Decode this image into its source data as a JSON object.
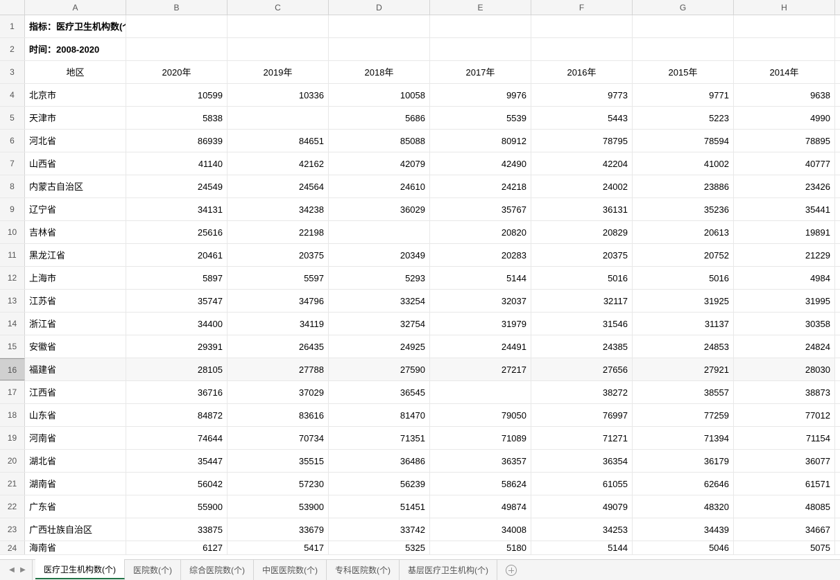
{
  "columns": [
    "A",
    "B",
    "C",
    "D",
    "E",
    "F",
    "G",
    "H"
  ],
  "title_row": {
    "label": "指标：医疗卫生机构数(个)"
  },
  "time_row": {
    "label": "时间：2008-2020"
  },
  "header_row": {
    "region": "地区",
    "years": [
      "2020年",
      "2019年",
      "2018年",
      "2017年",
      "2016年",
      "2015年",
      "2014年"
    ]
  },
  "selected_row_index": 16,
  "data_rows": [
    {
      "row_num": "4",
      "region": "北京市",
      "values": [
        "10599",
        "10336",
        "10058",
        "9976",
        "9773",
        "9771",
        "9638"
      ]
    },
    {
      "row_num": "5",
      "region": "天津市",
      "values": [
        "5838",
        "",
        "5686",
        "5539",
        "5443",
        "5223",
        "4990"
      ]
    },
    {
      "row_num": "6",
      "region": "河北省",
      "values": [
        "86939",
        "84651",
        "85088",
        "80912",
        "78795",
        "78594",
        "78895"
      ]
    },
    {
      "row_num": "7",
      "region": "山西省",
      "values": [
        "41140",
        "42162",
        "42079",
        "42490",
        "42204",
        "41002",
        "40777"
      ]
    },
    {
      "row_num": "8",
      "region": "内蒙古自治区",
      "values": [
        "24549",
        "24564",
        "24610",
        "24218",
        "24002",
        "23886",
        "23426"
      ]
    },
    {
      "row_num": "9",
      "region": "辽宁省",
      "values": [
        "34131",
        "34238",
        "36029",
        "35767",
        "36131",
        "35236",
        "35441"
      ]
    },
    {
      "row_num": "10",
      "region": "吉林省",
      "values": [
        "25616",
        "22198",
        "",
        "20820",
        "20829",
        "20613",
        "19891"
      ]
    },
    {
      "row_num": "11",
      "region": "黑龙江省",
      "values": [
        "20461",
        "20375",
        "20349",
        "20283",
        "20375",
        "20752",
        "21229"
      ]
    },
    {
      "row_num": "12",
      "region": "上海市",
      "values": [
        "5897",
        "5597",
        "5293",
        "5144",
        "5016",
        "5016",
        "4984"
      ]
    },
    {
      "row_num": "13",
      "region": "江苏省",
      "values": [
        "35747",
        "34796",
        "33254",
        "32037",
        "32117",
        "31925",
        "31995"
      ]
    },
    {
      "row_num": "14",
      "region": "浙江省",
      "values": [
        "34400",
        "34119",
        "32754",
        "31979",
        "31546",
        "31137",
        "30358"
      ]
    },
    {
      "row_num": "15",
      "region": "安徽省",
      "values": [
        "29391",
        "26435",
        "24925",
        "24491",
        "24385",
        "24853",
        "24824"
      ]
    },
    {
      "row_num": "16",
      "region": "福建省",
      "values": [
        "28105",
        "27788",
        "27590",
        "27217",
        "27656",
        "27921",
        "28030"
      ]
    },
    {
      "row_num": "17",
      "region": "江西省",
      "values": [
        "36716",
        "37029",
        "36545",
        "",
        "38272",
        "38557",
        "38873"
      ]
    },
    {
      "row_num": "18",
      "region": "山东省",
      "values": [
        "84872",
        "83616",
        "81470",
        "79050",
        "76997",
        "77259",
        "77012"
      ]
    },
    {
      "row_num": "19",
      "region": "河南省",
      "values": [
        "74644",
        "70734",
        "71351",
        "71089",
        "71271",
        "71394",
        "71154"
      ]
    },
    {
      "row_num": "20",
      "region": "湖北省",
      "values": [
        "35447",
        "35515",
        "36486",
        "36357",
        "36354",
        "36179",
        "36077"
      ]
    },
    {
      "row_num": "21",
      "region": "湖南省",
      "values": [
        "56042",
        "57230",
        "56239",
        "58624",
        "61055",
        "62646",
        "61571"
      ]
    },
    {
      "row_num": "22",
      "region": "广东省",
      "values": [
        "55900",
        "53900",
        "51451",
        "49874",
        "49079",
        "48320",
        "48085"
      ]
    },
    {
      "row_num": "23",
      "region": "广西壮族自治区",
      "values": [
        "33875",
        "33679",
        "33742",
        "34008",
        "34253",
        "34439",
        "34667"
      ]
    },
    {
      "row_num": "24",
      "region": "海南省",
      "values": [
        "6127",
        "5417",
        "5325",
        "5180",
        "5144",
        "5046",
        "5075"
      ]
    }
  ],
  "sheet_tabs": [
    {
      "label": "医疗卫生机构数(个)",
      "active": true
    },
    {
      "label": "医院数(个)",
      "active": false
    },
    {
      "label": "综合医院数(个)",
      "active": false
    },
    {
      "label": "中医医院数(个)",
      "active": false
    },
    {
      "label": "专科医院数(个)",
      "active": false
    },
    {
      "label": "基层医疗卫生机构(个)",
      "active": false
    }
  ]
}
